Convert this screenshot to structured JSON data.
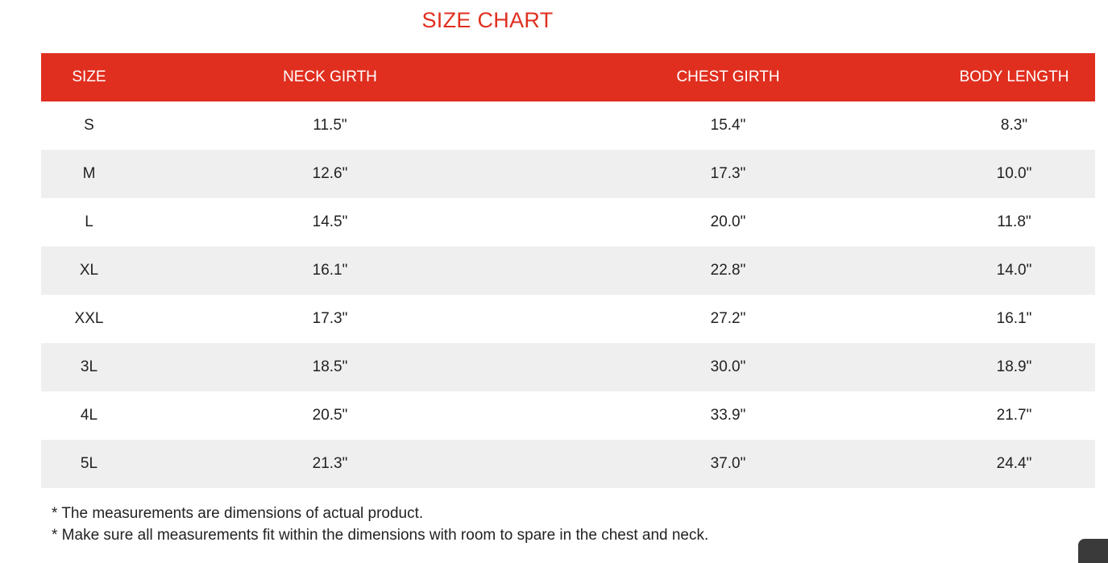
{
  "title": "SIZE CHART",
  "table": {
    "headers": [
      "SIZE",
      "NECK GIRTH",
      "CHEST GIRTH",
      "BODY LENGTH"
    ],
    "rows": [
      [
        "S",
        "11.5\"",
        "15.4\"",
        "8.3\""
      ],
      [
        "M",
        "12.6\"",
        "17.3\"",
        "10.0\""
      ],
      [
        "L",
        "14.5\"",
        "20.0\"",
        "11.8\""
      ],
      [
        "XL",
        "16.1\"",
        "22.8\"",
        "14.0\""
      ],
      [
        "XXL",
        "17.3\"",
        "27.2\"",
        "16.1\""
      ],
      [
        "3L",
        "18.5\"",
        "30.0\"",
        "18.9\""
      ],
      [
        "4L",
        "20.5\"",
        "33.9\"",
        "21.7\""
      ],
      [
        "5L",
        "21.3\"",
        "37.0\"",
        "24.4\""
      ]
    ]
  },
  "notes": [
    "* The measurements are dimensions of actual product.",
    "* Make sure all measurements fit within the dimensions with room to spare in the chest and neck."
  ],
  "colors": {
    "accent": "#e02f1f",
    "stripe": "#efefef",
    "text": "#222222"
  }
}
